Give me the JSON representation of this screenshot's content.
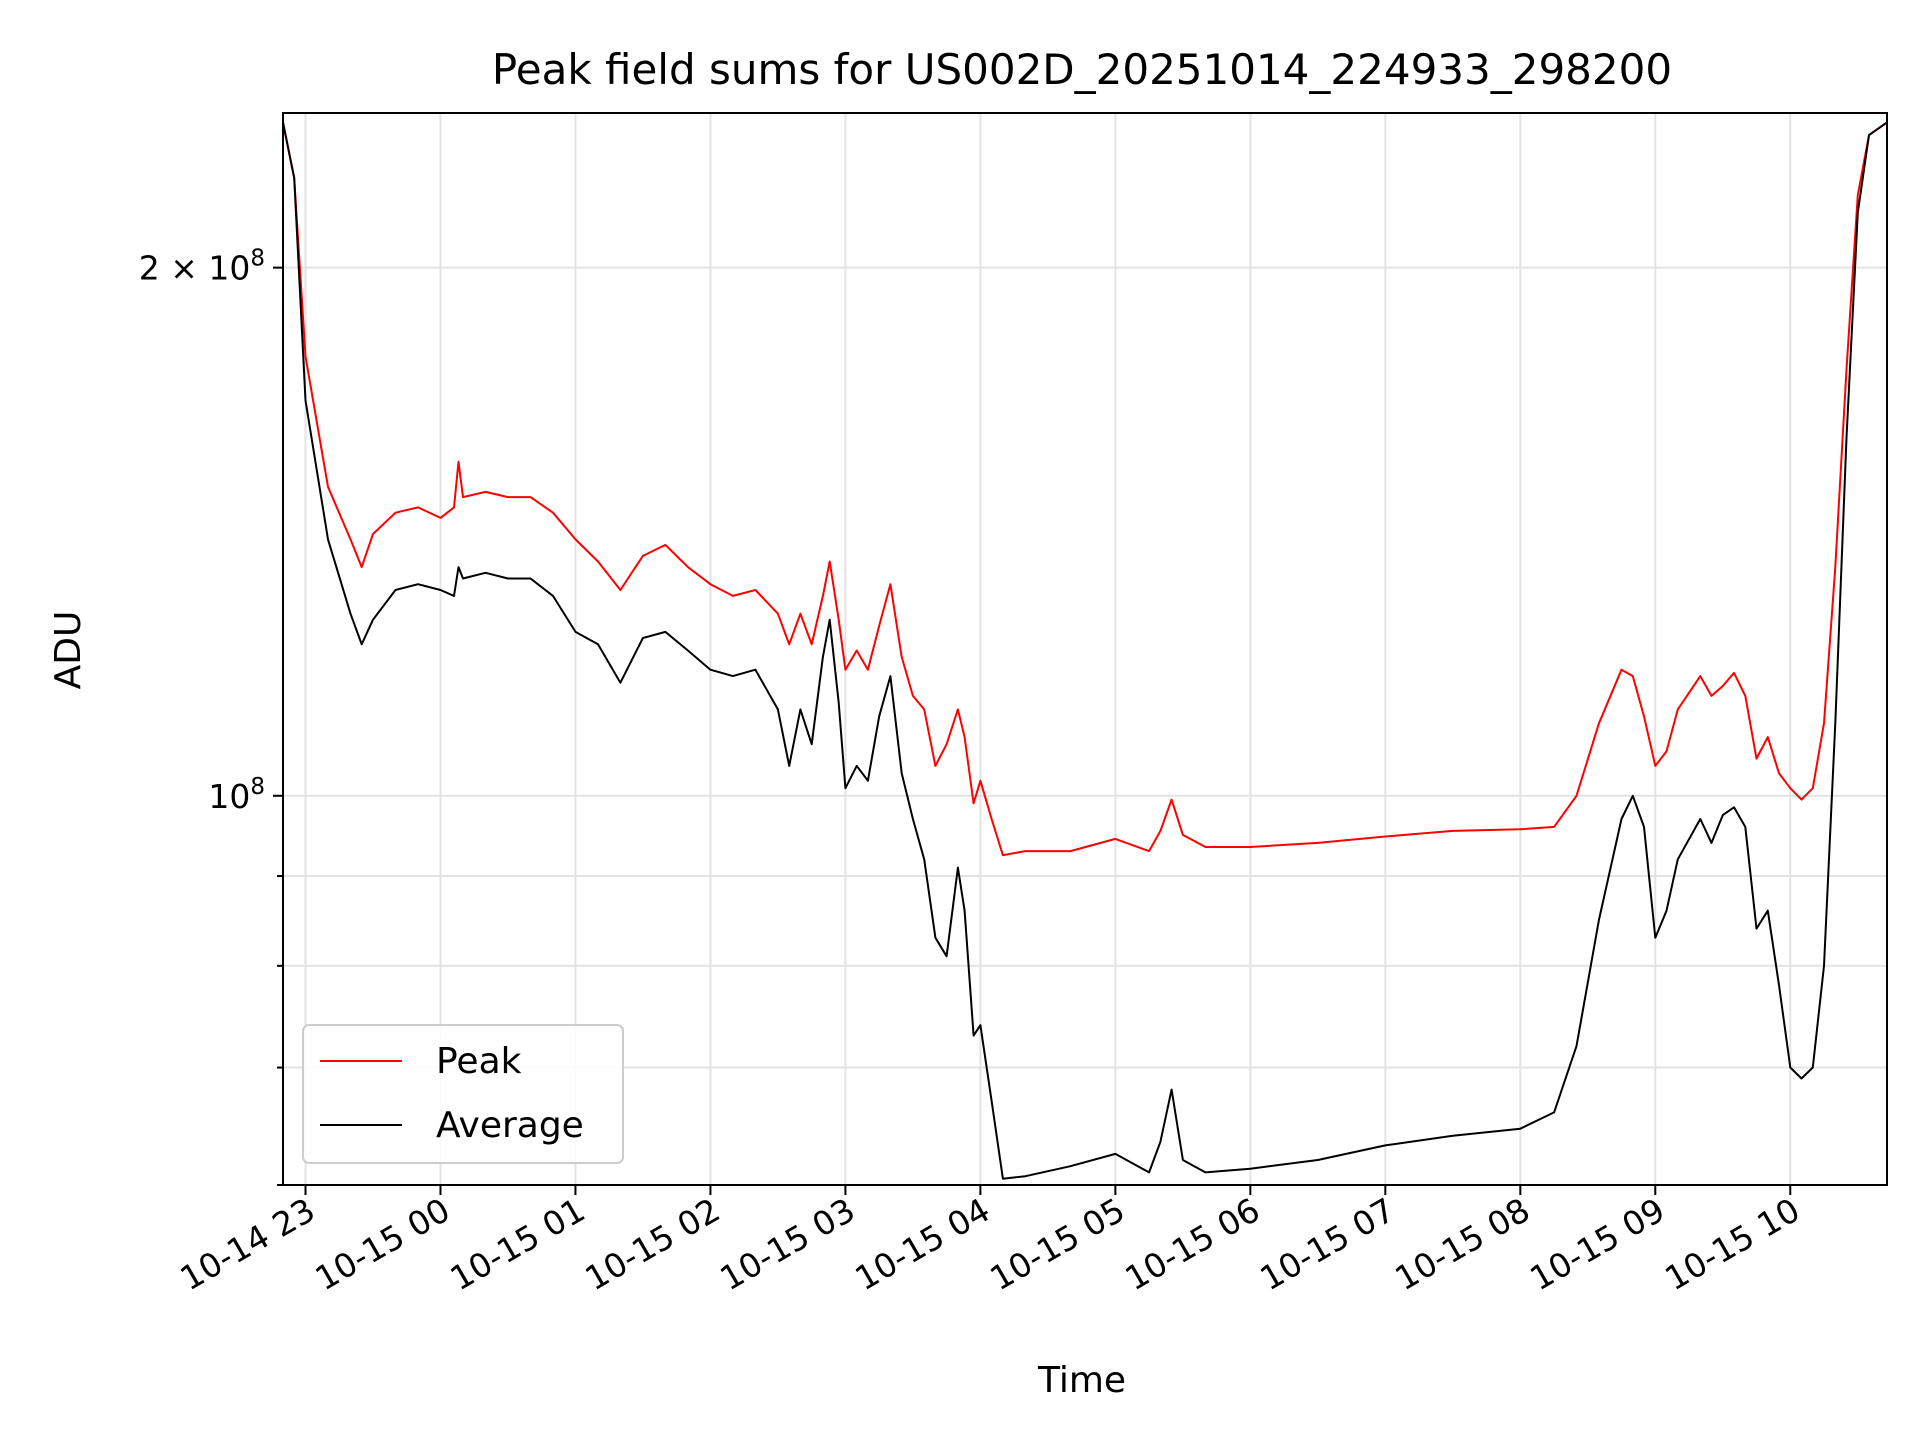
{
  "chart_data": {
    "type": "line",
    "title": "Peak field sums for US002D_20251014_224933_298200",
    "xlabel": "Time",
    "ylabel": "ADU",
    "y_scale": "log",
    "ylim": [
      60000000,
      245000000
    ],
    "xlim": [
      "2025-10-14 22:50",
      "2025-10-15 10:43"
    ],
    "grid": true,
    "legend": "lower-left",
    "x_ticks": [
      {
        "t": "2025-10-14 23:00",
        "label": "10-14 23"
      },
      {
        "t": "2025-10-15 00:00",
        "label": "10-15 00"
      },
      {
        "t": "2025-10-15 01:00",
        "label": "10-15 01"
      },
      {
        "t": "2025-10-15 02:00",
        "label": "10-15 02"
      },
      {
        "t": "2025-10-15 03:00",
        "label": "10-15 03"
      },
      {
        "t": "2025-10-15 04:00",
        "label": "10-15 04"
      },
      {
        "t": "2025-10-15 05:00",
        "label": "10-15 05"
      },
      {
        "t": "2025-10-15 06:00",
        "label": "10-15 06"
      },
      {
        "t": "2025-10-15 07:00",
        "label": "10-15 07"
      },
      {
        "t": "2025-10-15 08:00",
        "label": "10-15 08"
      },
      {
        "t": "2025-10-15 09:00",
        "label": "10-15 09"
      },
      {
        "t": "2025-10-15 10:00",
        "label": "10-15 10"
      }
    ],
    "y_major_ticks": [
      {
        "v": 100000000,
        "base": "10",
        "exp": "8",
        "mult": ""
      },
      {
        "v": 200000000,
        "base": "10",
        "exp": "8",
        "mult": "2 × "
      }
    ],
    "y_minor_ticks": [
      60000000,
      70000000,
      80000000,
      90000000
    ],
    "series": [
      {
        "name": "Peak",
        "color": "#ff0000",
        "points": [
          [
            "2025-10-14 22:50",
            242000000
          ],
          [
            "2025-10-14 22:55",
            225000000
          ],
          [
            "2025-10-14 23:00",
            178000000
          ],
          [
            "2025-10-14 23:10",
            150000000
          ],
          [
            "2025-10-14 23:20",
            140000000
          ],
          [
            "2025-10-14 23:25",
            135000000
          ],
          [
            "2025-10-14 23:30",
            141000000
          ],
          [
            "2025-10-14 23:40",
            145000000
          ],
          [
            "2025-10-14 23:50",
            146000000
          ],
          [
            "2025-10-15 00:00",
            144000000
          ],
          [
            "2025-10-15 00:06",
            146000000
          ],
          [
            "2025-10-15 00:08",
            155000000
          ],
          [
            "2025-10-15 00:10",
            148000000
          ],
          [
            "2025-10-15 00:20",
            149000000
          ],
          [
            "2025-10-15 00:30",
            148000000
          ],
          [
            "2025-10-15 00:40",
            148000000
          ],
          [
            "2025-10-15 00:50",
            145000000
          ],
          [
            "2025-10-15 01:00",
            140000000
          ],
          [
            "2025-10-15 01:10",
            136000000
          ],
          [
            "2025-10-15 01:20",
            131000000
          ],
          [
            "2025-10-15 01:30",
            137000000
          ],
          [
            "2025-10-15 01:40",
            139000000
          ],
          [
            "2025-10-15 01:50",
            135000000
          ],
          [
            "2025-10-15 02:00",
            132000000
          ],
          [
            "2025-10-15 02:10",
            130000000
          ],
          [
            "2025-10-15 02:20",
            131000000
          ],
          [
            "2025-10-15 02:30",
            127000000
          ],
          [
            "2025-10-15 02:35",
            122000000
          ],
          [
            "2025-10-15 02:40",
            127000000
          ],
          [
            "2025-10-15 02:45",
            122000000
          ],
          [
            "2025-10-15 02:50",
            130000000
          ],
          [
            "2025-10-15 02:53",
            136000000
          ],
          [
            "2025-10-15 02:57",
            126000000
          ],
          [
            "2025-10-15 03:00",
            118000000
          ],
          [
            "2025-10-15 03:05",
            121000000
          ],
          [
            "2025-10-15 03:10",
            118000000
          ],
          [
            "2025-10-15 03:15",
            125000000
          ],
          [
            "2025-10-15 03:20",
            132000000
          ],
          [
            "2025-10-15 03:25",
            120000000
          ],
          [
            "2025-10-15 03:30",
            114000000
          ],
          [
            "2025-10-15 03:35",
            112000000
          ],
          [
            "2025-10-15 03:40",
            104000000
          ],
          [
            "2025-10-15 03:45",
            107000000
          ],
          [
            "2025-10-15 03:50",
            112000000
          ],
          [
            "2025-10-15 03:53",
            108000000
          ],
          [
            "2025-10-15 03:57",
            99000000
          ],
          [
            "2025-10-15 04:00",
            102000000
          ],
          [
            "2025-10-15 04:05",
            97000000
          ],
          [
            "2025-10-15 04:10",
            92500000
          ],
          [
            "2025-10-15 04:20",
            93000000
          ],
          [
            "2025-10-15 04:40",
            93000000
          ],
          [
            "2025-10-15 05:00",
            94500000
          ],
          [
            "2025-10-15 05:15",
            93000000
          ],
          [
            "2025-10-15 05:20",
            95500000
          ],
          [
            "2025-10-15 05:25",
            99500000
          ],
          [
            "2025-10-15 05:30",
            95000000
          ],
          [
            "2025-10-15 05:40",
            93500000
          ],
          [
            "2025-10-15 06:00",
            93500000
          ],
          [
            "2025-10-15 06:30",
            94000000
          ],
          [
            "2025-10-15 07:00",
            94800000
          ],
          [
            "2025-10-15 07:30",
            95500000
          ],
          [
            "2025-10-15 08:00",
            95700000
          ],
          [
            "2025-10-15 08:15",
            96000000
          ],
          [
            "2025-10-15 08:25",
            100000000
          ],
          [
            "2025-10-15 08:35",
            110000000
          ],
          [
            "2025-10-15 08:45",
            118000000
          ],
          [
            "2025-10-15 08:50",
            117000000
          ],
          [
            "2025-10-15 08:55",
            111000000
          ],
          [
            "2025-10-15 09:00",
            104000000
          ],
          [
            "2025-10-15 09:05",
            106000000
          ],
          [
            "2025-10-15 09:10",
            112000000
          ],
          [
            "2025-10-15 09:20",
            117000000
          ],
          [
            "2025-10-15 09:25",
            114000000
          ],
          [
            "2025-10-15 09:30",
            115500000
          ],
          [
            "2025-10-15 09:35",
            117500000
          ],
          [
            "2025-10-15 09:40",
            114000000
          ],
          [
            "2025-10-15 09:45",
            105000000
          ],
          [
            "2025-10-15 09:50",
            108000000
          ],
          [
            "2025-10-15 09:55",
            103000000
          ],
          [
            "2025-10-15 10:00",
            101000000
          ],
          [
            "2025-10-15 10:05",
            99500000
          ],
          [
            "2025-10-15 10:10",
            101000000
          ],
          [
            "2025-10-15 10:15",
            110000000
          ],
          [
            "2025-10-15 10:20",
            135000000
          ],
          [
            "2025-10-15 10:25",
            175000000
          ],
          [
            "2025-10-15 10:30",
            220000000
          ],
          [
            "2025-10-15 10:35",
            238000000
          ],
          [
            "2025-10-15 10:43",
            242000000
          ]
        ]
      },
      {
        "name": "Average",
        "color": "#000000",
        "points": [
          [
            "2025-10-14 22:50",
            242000000
          ],
          [
            "2025-10-14 22:55",
            225000000
          ],
          [
            "2025-10-14 23:00",
            168000000
          ],
          [
            "2025-10-14 23:10",
            140000000
          ],
          [
            "2025-10-14 23:20",
            127000000
          ],
          [
            "2025-10-14 23:25",
            122000000
          ],
          [
            "2025-10-14 23:30",
            126000000
          ],
          [
            "2025-10-14 23:40",
            131000000
          ],
          [
            "2025-10-14 23:50",
            132000000
          ],
          [
            "2025-10-15 00:00",
            131000000
          ],
          [
            "2025-10-15 00:06",
            130000000
          ],
          [
            "2025-10-15 00:08",
            135000000
          ],
          [
            "2025-10-15 00:10",
            133000000
          ],
          [
            "2025-10-15 00:20",
            134000000
          ],
          [
            "2025-10-15 00:30",
            133000000
          ],
          [
            "2025-10-15 00:40",
            133000000
          ],
          [
            "2025-10-15 00:50",
            130000000
          ],
          [
            "2025-10-15 01:00",
            124000000
          ],
          [
            "2025-10-15 01:10",
            122000000
          ],
          [
            "2025-10-15 01:20",
            116000000
          ],
          [
            "2025-10-15 01:30",
            123000000
          ],
          [
            "2025-10-15 01:40",
            124000000
          ],
          [
            "2025-10-15 01:50",
            121000000
          ],
          [
            "2025-10-15 02:00",
            118000000
          ],
          [
            "2025-10-15 02:10",
            117000000
          ],
          [
            "2025-10-15 02:20",
            118000000
          ],
          [
            "2025-10-15 02:30",
            112000000
          ],
          [
            "2025-10-15 02:35",
            104000000
          ],
          [
            "2025-10-15 02:40",
            112000000
          ],
          [
            "2025-10-15 02:45",
            107000000
          ],
          [
            "2025-10-15 02:50",
            120000000
          ],
          [
            "2025-10-15 02:53",
            126000000
          ],
          [
            "2025-10-15 02:57",
            113000000
          ],
          [
            "2025-10-15 03:00",
            101000000
          ],
          [
            "2025-10-15 03:05",
            104000000
          ],
          [
            "2025-10-15 03:10",
            102000000
          ],
          [
            "2025-10-15 03:15",
            111000000
          ],
          [
            "2025-10-15 03:20",
            117000000
          ],
          [
            "2025-10-15 03:25",
            103000000
          ],
          [
            "2025-10-15 03:30",
            97000000
          ],
          [
            "2025-10-15 03:35",
            92000000
          ],
          [
            "2025-10-15 03:40",
            83000000
          ],
          [
            "2025-10-15 03:45",
            81000000
          ],
          [
            "2025-10-15 03:50",
            91000000
          ],
          [
            "2025-10-15 03:53",
            86000000
          ],
          [
            "2025-10-15 03:57",
            73000000
          ],
          [
            "2025-10-15 04:00",
            74000000
          ],
          [
            "2025-10-15 04:05",
            67000000
          ],
          [
            "2025-10-15 04:10",
            60500000
          ],
          [
            "2025-10-15 04:20",
            60700000
          ],
          [
            "2025-10-15 04:40",
            61500000
          ],
          [
            "2025-10-15 05:00",
            62500000
          ],
          [
            "2025-10-15 05:15",
            61000000
          ],
          [
            "2025-10-15 05:20",
            63500000
          ],
          [
            "2025-10-15 05:25",
            68000000
          ],
          [
            "2025-10-15 05:30",
            62000000
          ],
          [
            "2025-10-15 05:40",
            61000000
          ],
          [
            "2025-10-15 06:00",
            61300000
          ],
          [
            "2025-10-15 06:30",
            62000000
          ],
          [
            "2025-10-15 07:00",
            63200000
          ],
          [
            "2025-10-15 07:30",
            64000000
          ],
          [
            "2025-10-15 08:00",
            64600000
          ],
          [
            "2025-10-15 08:15",
            66000000
          ],
          [
            "2025-10-15 08:25",
            72000000
          ],
          [
            "2025-10-15 08:35",
            85000000
          ],
          [
            "2025-10-15 08:45",
            97000000
          ],
          [
            "2025-10-15 08:50",
            100000000
          ],
          [
            "2025-10-15 08:55",
            96000000
          ],
          [
            "2025-10-15 09:00",
            83000000
          ],
          [
            "2025-10-15 09:05",
            86000000
          ],
          [
            "2025-10-15 09:10",
            92000000
          ],
          [
            "2025-10-15 09:20",
            97000000
          ],
          [
            "2025-10-15 09:25",
            94000000
          ],
          [
            "2025-10-15 09:30",
            97500000
          ],
          [
            "2025-10-15 09:35",
            98500000
          ],
          [
            "2025-10-15 09:40",
            96000000
          ],
          [
            "2025-10-15 09:45",
            84000000
          ],
          [
            "2025-10-15 09:50",
            86000000
          ],
          [
            "2025-10-15 09:55",
            78000000
          ],
          [
            "2025-10-15 10:00",
            70000000
          ],
          [
            "2025-10-15 10:05",
            69000000
          ],
          [
            "2025-10-15 10:10",
            70000000
          ],
          [
            "2025-10-15 10:15",
            80000000
          ],
          [
            "2025-10-15 10:20",
            110000000
          ],
          [
            "2025-10-15 10:25",
            160000000
          ],
          [
            "2025-10-15 10:30",
            215000000
          ],
          [
            "2025-10-15 10:35",
            238000000
          ],
          [
            "2025-10-15 10:43",
            242000000
          ]
        ]
      }
    ]
  }
}
